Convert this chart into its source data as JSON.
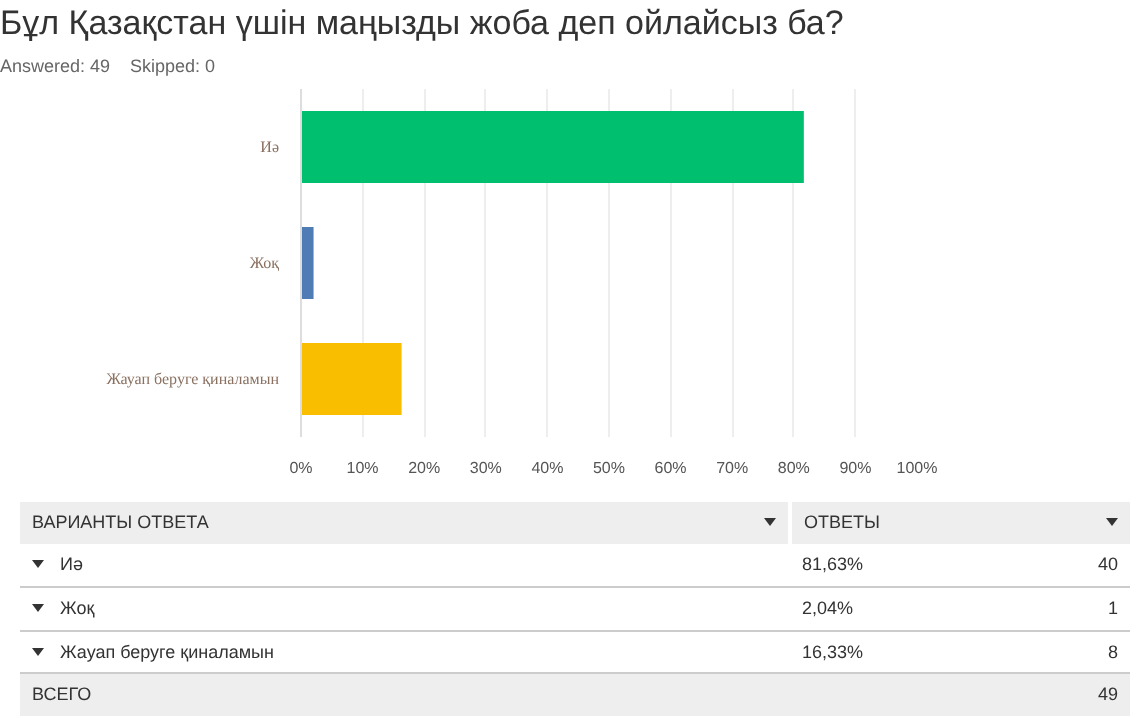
{
  "chart_data": {
    "type": "bar",
    "orientation": "horizontal",
    "title": "Бұл Қазақстан үшін маңызды жоба деп ойлайсыз ба?",
    "subtitle": "Answered: 49    Skipped: 0",
    "categories": [
      "Иә",
      "Жоқ",
      "Жауап беруге қиналамын"
    ],
    "values": [
      81.63,
      2.04,
      16.33
    ],
    "colors": [
      "#00bf6f",
      "#507cb6",
      "#f9be00"
    ],
    "xlim": [
      0,
      100
    ],
    "xticks": [
      {
        "value": 0,
        "label": "0%"
      },
      {
        "value": 10,
        "label": "10%"
      },
      {
        "value": 20,
        "label": "20%"
      },
      {
        "value": 30,
        "label": "30%"
      },
      {
        "value": 40,
        "label": "40%"
      },
      {
        "value": 50,
        "label": "50%"
      },
      {
        "value": 60,
        "label": "60%"
      },
      {
        "value": 70,
        "label": "70%"
      },
      {
        "value": 80,
        "label": "80%"
      },
      {
        "value": 90,
        "label": "90%"
      },
      {
        "value": 100,
        "label": "100%"
      }
    ],
    "grid": "x",
    "annotations": [
      "ВАРИАНТЫ ОТВЕТА",
      "ОТВЕТЫ",
      "81,63%",
      "40",
      "2,04%",
      "1",
      "16,33%",
      "8",
      "ВСЕГО",
      "49"
    ]
  }
}
